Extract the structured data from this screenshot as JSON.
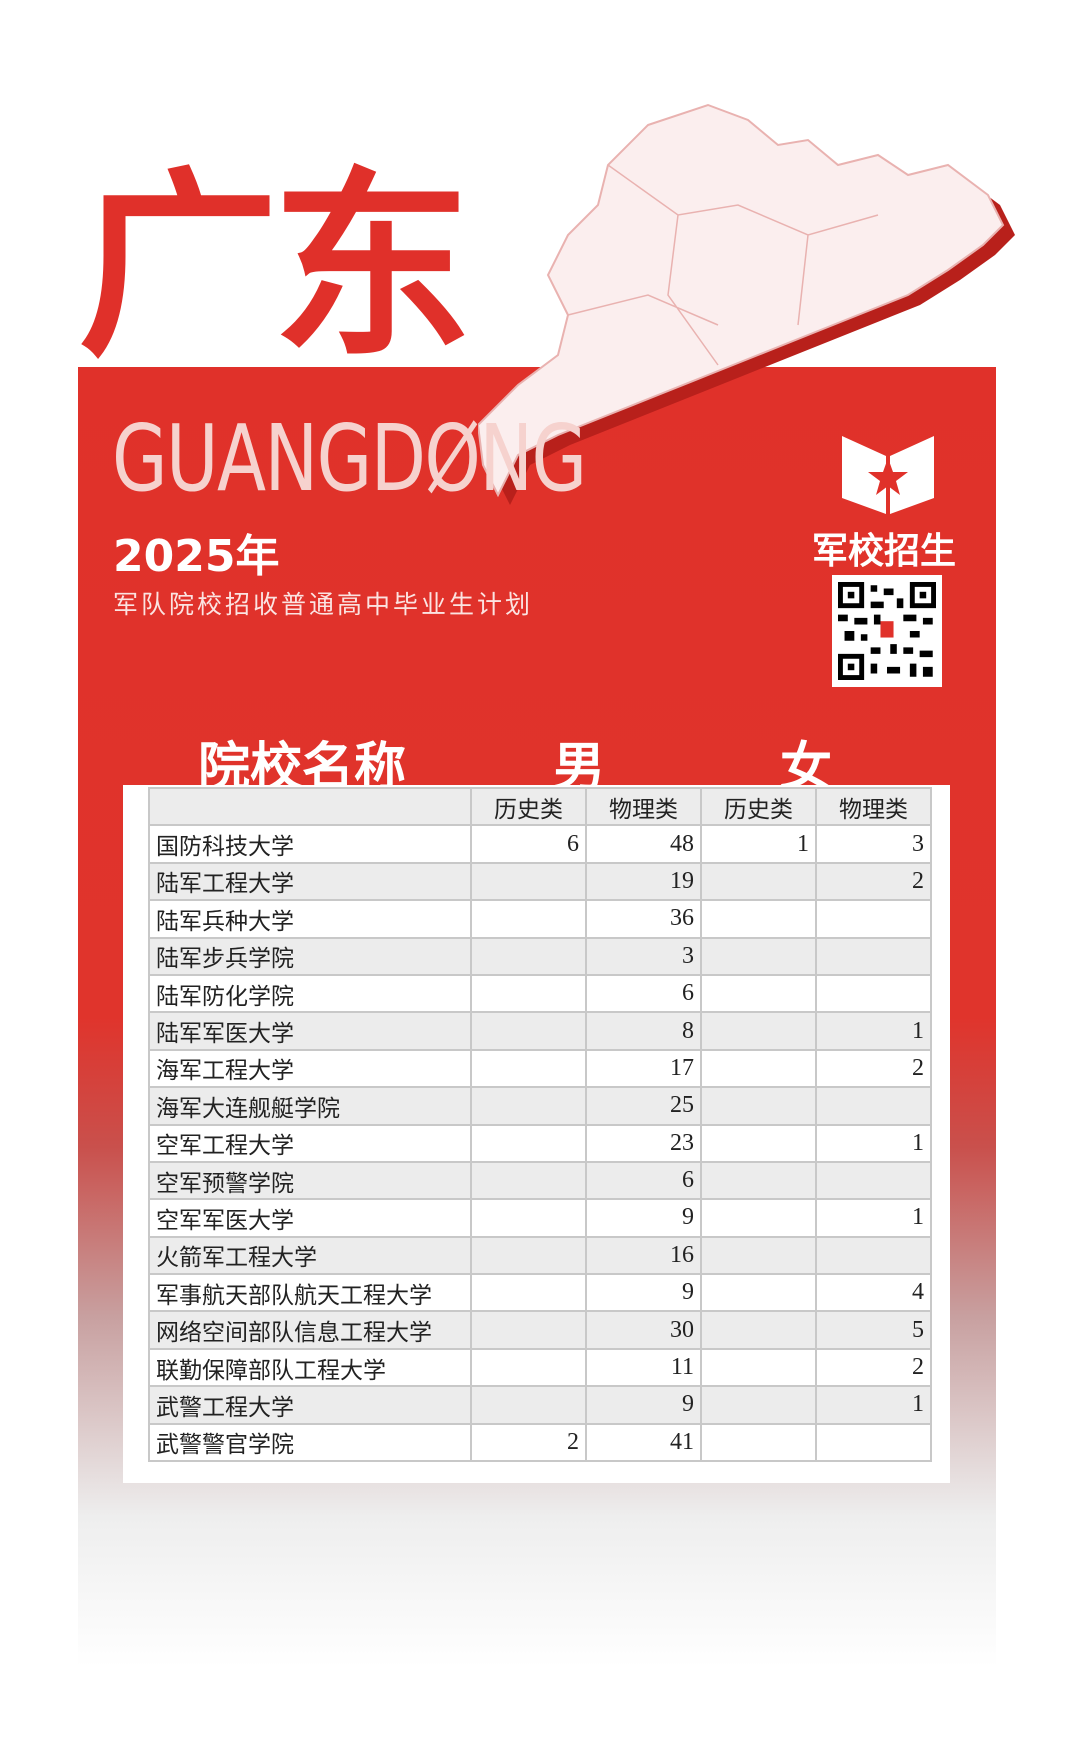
{
  "title": "广东",
  "pinyin": "GUANGDØNG",
  "year": "2025年",
  "subtitle": "军队院校招收普通高中毕业生计划",
  "brand": "军校招生",
  "logo_icon": "star-book-icon",
  "qr_icon": "qr-code-icon",
  "colors": {
    "accent": "#e0312a"
  },
  "headers": {
    "name": "院校名称",
    "male": "男",
    "female": "女",
    "sub": [
      "历史类",
      "物理类",
      "历史类",
      "物理类"
    ]
  },
  "rows": [
    {
      "name": "国防科技大学",
      "v": [
        "6",
        "48",
        "1",
        "3"
      ]
    },
    {
      "name": "陆军工程大学",
      "v": [
        "",
        "19",
        "",
        "2"
      ]
    },
    {
      "name": "陆军兵种大学",
      "v": [
        "",
        "36",
        "",
        ""
      ]
    },
    {
      "name": "陆军步兵学院",
      "v": [
        "",
        "3",
        "",
        ""
      ]
    },
    {
      "name": "陆军防化学院",
      "v": [
        "",
        "6",
        "",
        ""
      ]
    },
    {
      "name": "陆军军医大学",
      "v": [
        "",
        "8",
        "",
        "1"
      ]
    },
    {
      "name": "海军工程大学",
      "v": [
        "",
        "17",
        "",
        "2"
      ]
    },
    {
      "name": "海军大连舰艇学院",
      "v": [
        "",
        "25",
        "",
        ""
      ]
    },
    {
      "name": "空军工程大学",
      "v": [
        "",
        "23",
        "",
        "1"
      ]
    },
    {
      "name": "空军预警学院",
      "v": [
        "",
        "6",
        "",
        ""
      ]
    },
    {
      "name": "空军军医大学",
      "v": [
        "",
        "9",
        "",
        "1"
      ]
    },
    {
      "name": "火箭军工程大学",
      "v": [
        "",
        "16",
        "",
        ""
      ]
    },
    {
      "name": "军事航天部队航天工程大学",
      "v": [
        "",
        "9",
        "",
        "4"
      ]
    },
    {
      "name": "网络空间部队信息工程大学",
      "v": [
        "",
        "30",
        "",
        "5"
      ]
    },
    {
      "name": "联勤保障部队工程大学",
      "v": [
        "",
        "11",
        "",
        "2"
      ]
    },
    {
      "name": "武警工程大学",
      "v": [
        "",
        "9",
        "",
        "1"
      ]
    },
    {
      "name": "武警警官学院",
      "v": [
        "2",
        "41",
        "",
        ""
      ]
    }
  ]
}
